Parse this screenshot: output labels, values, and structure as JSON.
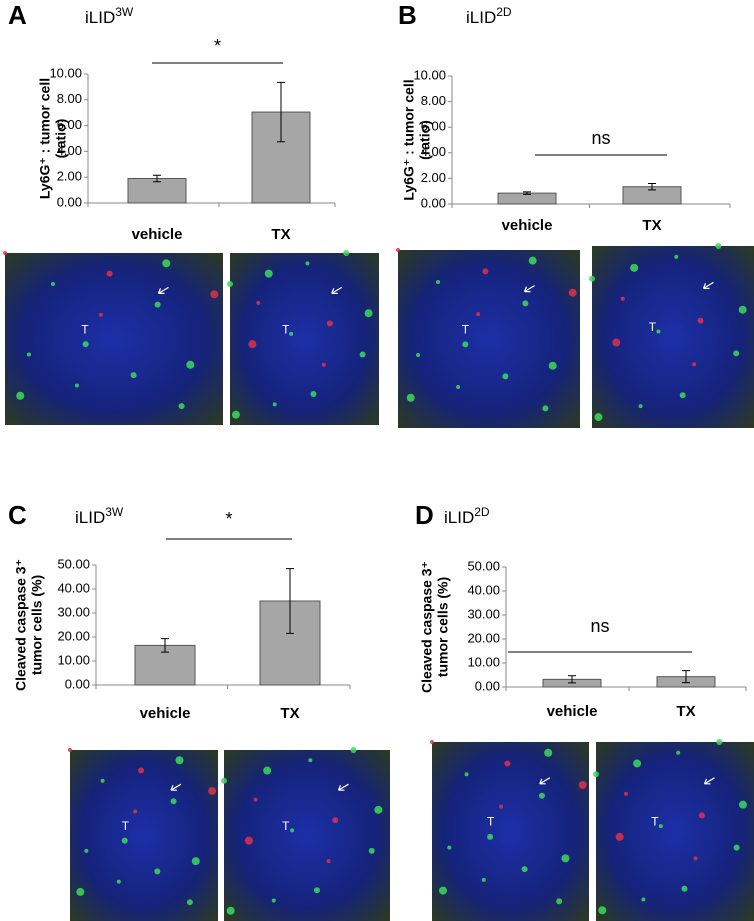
{
  "chart_data": [
    {
      "type": "bar",
      "panel": "A",
      "title": "iLID",
      "title_sup": "3W",
      "ylabel": [
        "Ly6G⁺ :  tumor cell",
        "(ratio)"
      ],
      "categories": [
        "vehicle",
        "TX"
      ],
      "values": [
        1.9,
        7.05
      ],
      "errors": [
        0.25,
        2.3
      ],
      "color": "#a6a6a6",
      "ylim": [
        0,
        10
      ],
      "yticks": [
        {
          "value": 0,
          "label": "0.00"
        },
        {
          "value": 2,
          "label": "2.00"
        },
        {
          "value": 4,
          "label": "4.00"
        },
        {
          "value": 6,
          "label": "6.00"
        },
        {
          "value": 8,
          "label": "8.00"
        },
        {
          "value": 10,
          "label": "10.00"
        }
      ],
      "annotation": "*",
      "micrograph_labels": [
        "T",
        "T"
      ]
    },
    {
      "type": "bar",
      "panel": "B",
      "title": "iLID",
      "title_sup": "2D",
      "ylabel": [
        "Ly6G⁺ : tumor cell",
        "(ratio)"
      ],
      "categories": [
        "vehicle",
        "TX"
      ],
      "values": [
        0.85,
        1.35
      ],
      "errors": [
        0.1,
        0.25
      ],
      "color": "#a6a6a6",
      "ylim": [
        0,
        10
      ],
      "yticks": [
        {
          "value": 0,
          "label": "0.00"
        },
        {
          "value": 2,
          "label": "2.00"
        },
        {
          "value": 4,
          "label": "4.00"
        },
        {
          "value": 6,
          "label": "6.00"
        },
        {
          "value": 8,
          "label": "8.00"
        },
        {
          "value": 10,
          "label": "10.00"
        }
      ],
      "annotation": "ns",
      "micrograph_labels": [
        "T",
        "T"
      ]
    },
    {
      "type": "bar",
      "panel": "C",
      "title": "iLID",
      "title_sup": "3W",
      "ylabel": [
        "Cleaved caspase 3⁺",
        "tumor cells (%)"
      ],
      "categories": [
        "vehicle",
        "TX"
      ],
      "values": [
        16.5,
        35
      ],
      "errors": [
        2.8,
        13.5
      ],
      "color": "#a6a6a6",
      "ylim": [
        0,
        50
      ],
      "yticks": [
        {
          "value": 0,
          "label": "0.00"
        },
        {
          "value": 10,
          "label": "10.00"
        },
        {
          "value": 20,
          "label": "20.00"
        },
        {
          "value": 30,
          "label": "30.00"
        },
        {
          "value": 40,
          "label": "40.00"
        },
        {
          "value": 50,
          "label": "50.00"
        }
      ],
      "annotation": "*",
      "micrograph_labels": [
        "T",
        "T"
      ]
    },
    {
      "type": "bar",
      "panel": "D",
      "title": "iLID",
      "title_sup": "2D",
      "ylabel": [
        "Cleaved caspase 3⁺",
        "tumor cells (%)"
      ],
      "categories": [
        "vehicle",
        "TX"
      ],
      "values": [
        3.2,
        4.3
      ],
      "errors": [
        1.5,
        2.5
      ],
      "color": "#a6a6a6",
      "ylim": [
        0,
        50
      ],
      "yticks": [
        {
          "value": 0,
          "label": "0.00"
        },
        {
          "value": 10,
          "label": "10.00"
        },
        {
          "value": 20,
          "label": "20.00"
        },
        {
          "value": 30,
          "label": "30.00"
        },
        {
          "value": 40,
          "label": "40.00"
        },
        {
          "value": 50,
          "label": "50.00"
        }
      ],
      "annotation": "ns",
      "micrograph_labels": [
        "T",
        "T"
      ]
    }
  ]
}
